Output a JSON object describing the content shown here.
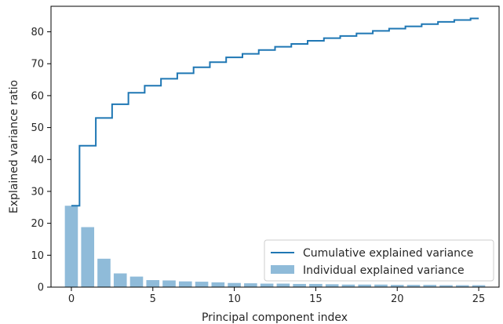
{
  "chart_data": {
    "type": "bar",
    "xlabel": "Principal component index",
    "ylabel": "Explained variance ratio",
    "xlim": [
      -1.25,
      26.25
    ],
    "ylim": [
      0,
      88
    ],
    "x_ticks": [
      0,
      5,
      10,
      15,
      20,
      25
    ],
    "y_ticks": [
      0,
      10,
      20,
      30,
      40,
      50,
      60,
      70,
      80
    ],
    "legend_position": "lower-right",
    "x": [
      0,
      1,
      2,
      3,
      4,
      5,
      6,
      7,
      8,
      9,
      10,
      11,
      12,
      13,
      14,
      15,
      16,
      17,
      18,
      19,
      20,
      21,
      22,
      23,
      24,
      25
    ],
    "series": [
      {
        "name": "Cumulative explained variance",
        "kind": "step",
        "color": "#1f77b4",
        "values": [
          25.5,
          44.3,
          53.0,
          57.3,
          60.9,
          63.1,
          65.3,
          67.0,
          68.9,
          70.5,
          72.0,
          73.1,
          74.3,
          75.3,
          76.2,
          77.2,
          78.0,
          78.7,
          79.5,
          80.3,
          81.0,
          81.7,
          82.4,
          83.1,
          83.7,
          84.2
        ]
      },
      {
        "name": "Individual explained variance",
        "kind": "bar",
        "color": "#1f77b4",
        "values": [
          25.5,
          18.8,
          8.9,
          4.3,
          3.3,
          2.2,
          2.1,
          1.8,
          1.7,
          1.5,
          1.3,
          1.2,
          1.1,
          1.1,
          1.0,
          1.0,
          0.9,
          0.8,
          0.8,
          0.8,
          0.7,
          0.7,
          0.7,
          0.6,
          0.6,
          0.6
        ]
      }
    ]
  }
}
